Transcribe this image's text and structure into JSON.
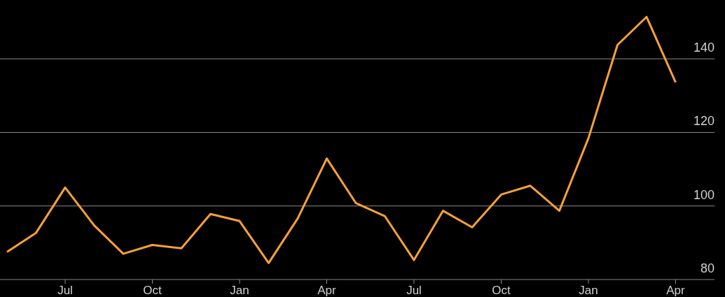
{
  "chart_data": {
    "type": "line",
    "categories": [
      null,
      null,
      "Jul",
      null,
      null,
      "Oct",
      null,
      null,
      "Jan",
      null,
      null,
      "Apr",
      null,
      null,
      "Jul",
      null,
      null,
      "Oct",
      null,
      null,
      "Jan",
      null,
      null,
      "Apr"
    ],
    "series": [
      {
        "color": "#f7a138",
        "values": [
          87.5,
          92.7,
          105.0,
          94.7,
          87.0,
          89.4,
          88.5,
          97.8,
          95.9,
          84.5,
          96.6,
          112.9,
          100.8,
          97.2,
          85.3,
          98.7,
          94.2,
          103.1,
          105.5,
          98.7,
          118.4,
          143.8,
          151.4,
          133.6
        ]
      }
    ],
    "ylim": [
      80,
      156
    ],
    "yticks": [
      80,
      100,
      120,
      140
    ],
    "grid": "y",
    "marker": "none",
    "line_style": "solid"
  }
}
